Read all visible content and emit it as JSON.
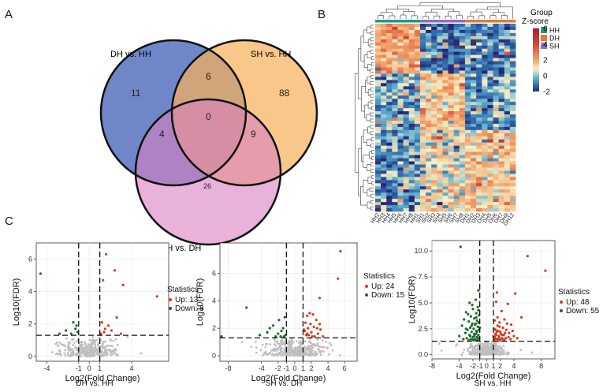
{
  "panels": {
    "a": "A",
    "b": "B",
    "c": "C"
  },
  "chart_data": [
    {
      "type": "venn",
      "sets": [
        "DH vs. HH",
        "SH vs. HH",
        "SH vs. DH"
      ],
      "colors": [
        "#6f87c9",
        "#f7b25b",
        "#d97fbf"
      ],
      "regions": {
        "dh_only": "11",
        "sh_hh_only": "88",
        "dh_and_sh_hh": "6",
        "all_three": "0",
        "dh_and_sh_dh": "4",
        "sh_hh_and_sh_dh": "9",
        "sh_dh_only": "26"
      }
    },
    {
      "type": "heatmap",
      "legend_title_group": "Group",
      "legend_title_z": "Z-score",
      "groups": [
        {
          "name": "HH",
          "color": "#1a9b8b"
        },
        {
          "name": "DH",
          "color": "#e07b3a"
        },
        {
          "name": "SH",
          "color": "#8a6fbf"
        }
      ],
      "z_ticks": [
        "6",
        "4",
        "2",
        "0",
        "-2"
      ],
      "zlim": [
        -2,
        6
      ],
      "columns": [
        "HH2",
        "HH3",
        "HH4",
        "HH5",
        "HH6",
        "HH7",
        "HH8",
        "HH1",
        "SH1",
        "SH2",
        "SH3",
        "SH4",
        "SH5",
        "SH6",
        "SH7",
        "SH8",
        "DH1",
        "DH2",
        "DH3",
        "DH4",
        "DH5",
        "DH6",
        "DH7",
        "DH8",
        "DH12"
      ],
      "column_groups": [
        "HH",
        "HH",
        "HH",
        "HH",
        "HH",
        "HH",
        "HH",
        "HH",
        "SH",
        "SH",
        "SH",
        "SH",
        "SH",
        "SH",
        "SH",
        "SH",
        "DH",
        "DH",
        "DH",
        "DH",
        "DH",
        "DH",
        "DH",
        "DH",
        "DH"
      ],
      "n_rows": 60
    },
    {
      "type": "scatter",
      "subtitle": "DH vs. HH",
      "xlabel": "Log2(Fold Change)",
      "ylabel": "Log10(FDR)",
      "xlim": [
        -5,
        7.5
      ],
      "ylim": [
        -0.3,
        7
      ],
      "x_ticks": [
        "-4",
        "-1",
        "0",
        "1",
        "4"
      ],
      "x_tick_values": [
        -4,
        -1,
        0,
        1,
        4
      ],
      "y_ticks": [
        "0",
        "2",
        "4",
        "6"
      ],
      "y_tick_values": [
        0,
        2,
        4,
        6
      ],
      "vlines": [
        -1,
        1
      ],
      "hline": 1.3,
      "legend": {
        "title": "Statistics",
        "up": "Up: 13",
        "down": "Down: 8"
      },
      "up_points": [
        [
          1.6,
          6.3
        ],
        [
          2.4,
          5.3
        ],
        [
          1.3,
          4.7
        ],
        [
          3.2,
          4.4
        ],
        [
          6.4,
          3.7
        ],
        [
          2.6,
          2.4
        ],
        [
          1.2,
          2.1
        ],
        [
          1.5,
          1.7
        ],
        [
          2.1,
          1.6
        ],
        [
          3.0,
          1.4
        ],
        [
          1.1,
          1.4
        ],
        [
          1.8,
          1.9
        ],
        [
          1.4,
          1.5
        ]
      ],
      "down_points": [
        [
          -4.6,
          5.1
        ],
        [
          -1.5,
          2.1
        ],
        [
          -1.2,
          1.9
        ],
        [
          -2.2,
          1.6
        ],
        [
          -1.1,
          1.5
        ],
        [
          -1.7,
          1.4
        ],
        [
          -2.8,
          1.4
        ],
        [
          -1.3,
          1.7
        ]
      ],
      "up_color": "#d73a1f",
      "down_color": "#1d6b2a",
      "ns_color": "#bfbfbf",
      "ns_range": {
        "x": [
          -3,
          3
        ],
        "ymax": 1.2,
        "n": 320
      }
    },
    {
      "type": "scatter",
      "subtitle": "SH vs. DH",
      "xlabel": "Log2(Fold Change)",
      "ylabel": "Log10(FDR)",
      "xlim": [
        -9,
        7.5
      ],
      "ylim": [
        -0.4,
        8.2
      ],
      "x_ticks": [
        "-8",
        "-4",
        "-2",
        "-1",
        "0",
        "1",
        "2",
        "4",
        "6"
      ],
      "x_tick_values": [
        -8,
        -4,
        -2,
        -1,
        0,
        1,
        2,
        4,
        6
      ],
      "y_ticks": [
        "0",
        "2",
        "4",
        "6"
      ],
      "y_tick_values": [
        0,
        2,
        4,
        6
      ],
      "vlines": [
        -1,
        1
      ],
      "hline": 1.3,
      "legend": {
        "title": "Statistics",
        "up": "Up: 24",
        "down": "Down: 15"
      },
      "up_points": [
        [
          5.5,
          7.6
        ],
        [
          5.2,
          5.6
        ],
        [
          3.0,
          4.2
        ],
        [
          1.8,
          3.1
        ],
        [
          2.2,
          3.0
        ],
        [
          1.5,
          2.9
        ],
        [
          2.6,
          2.6
        ],
        [
          1.3,
          2.4
        ],
        [
          1.9,
          2.3
        ],
        [
          2.3,
          2.1
        ],
        [
          1.6,
          2.0
        ],
        [
          3.1,
          1.9
        ],
        [
          1.2,
          1.8
        ],
        [
          2.0,
          1.7
        ],
        [
          2.8,
          1.6
        ],
        [
          1.4,
          1.5
        ],
        [
          1.7,
          1.5
        ],
        [
          2.4,
          1.4
        ],
        [
          3.4,
          1.4
        ],
        [
          1.1,
          1.9
        ],
        [
          2.7,
          2.0
        ],
        [
          1.5,
          1.6
        ],
        [
          2.1,
          1.4
        ],
        [
          3.0,
          2.3
        ]
      ],
      "down_points": [
        [
          -1.2,
          2.8
        ],
        [
          -5.8,
          3.5
        ],
        [
          -1.9,
          2.6
        ],
        [
          -2.6,
          2.2
        ],
        [
          -1.4,
          2.0
        ],
        [
          -3.3,
          1.7
        ],
        [
          -2.0,
          1.6
        ],
        [
          -1.1,
          1.5
        ],
        [
          -4.2,
          1.5
        ],
        [
          -1.6,
          1.8
        ],
        [
          -2.3,
          1.4
        ],
        [
          -3.0,
          2.0
        ],
        [
          -1.3,
          1.4
        ],
        [
          -8.8,
          1.4
        ],
        [
          -1.7,
          1.4
        ]
      ],
      "up_color": "#d73a1f",
      "down_color": "#1d6b2a",
      "ns_color": "#bfbfbf",
      "ns_range": {
        "x": [
          -4,
          4
        ],
        "ymax": 1.25,
        "n": 360
      }
    },
    {
      "type": "scatter",
      "subtitle": "SH vs. HH",
      "xlabel": "Log2(Fold Change)",
      "ylabel": "Log10(FDR)",
      "xlim": [
        -8,
        10
      ],
      "ylim": [
        -0.4,
        11
      ],
      "x_ticks": [
        "-8",
        "-4",
        "-2",
        "-1",
        "0",
        "1",
        "2",
        "4",
        "8"
      ],
      "x_tick_values": [
        -8,
        -4,
        -2,
        -1,
        0,
        1,
        2,
        4,
        8
      ],
      "y_ticks": [
        "0.0",
        "2.5",
        "5.0",
        "7.5",
        "10.0"
      ],
      "y_tick_values": [
        0,
        2.5,
        5,
        7.5,
        10
      ],
      "vlines": [
        -1,
        1
      ],
      "hline": 1.3,
      "legend": {
        "title": "Statistics",
        "up": "Up: 48",
        "down": "Down: 55"
      },
      "up_color": "#d73a1f",
      "down_color": "#1d6b2a",
      "ns_color": "#bfbfbf",
      "up_points": [
        [
          8.6,
          8.1
        ],
        [
          6.0,
          9.5
        ],
        [
          4.2,
          5.9
        ],
        [
          1.5,
          6.0
        ],
        [
          3.1,
          4.9
        ],
        [
          1.4,
          5.1
        ],
        [
          2.2,
          4.2
        ],
        [
          5.1,
          3.6
        ],
        [
          2.6,
          3.4
        ],
        [
          1.2,
          3.3
        ],
        [
          1.9,
          3.1
        ],
        [
          3.6,
          2.9
        ],
        [
          1.6,
          2.8
        ],
        [
          2.4,
          2.6
        ],
        [
          1.1,
          2.5
        ],
        [
          2.9,
          2.4
        ],
        [
          1.7,
          2.3
        ],
        [
          2.0,
          2.2
        ],
        [
          3.3,
          2.1
        ],
        [
          1.3,
          2.0
        ],
        [
          2.5,
          1.9
        ],
        [
          1.8,
          1.8
        ],
        [
          4.0,
          1.8
        ],
        [
          1.2,
          1.7
        ],
        [
          2.2,
          1.6
        ],
        [
          2.8,
          1.6
        ],
        [
          1.5,
          1.5
        ],
        [
          3.5,
          1.5
        ],
        [
          1.1,
          1.4
        ],
        [
          2.0,
          1.4
        ],
        [
          2.6,
          1.4
        ],
        [
          1.4,
          1.9
        ],
        [
          1.9,
          2.7
        ],
        [
          3.0,
          3.0
        ],
        [
          1.6,
          3.6
        ],
        [
          2.3,
          1.9
        ],
        [
          1.3,
          2.4
        ],
        [
          2.7,
          2.1
        ],
        [
          4.5,
          1.6
        ],
        [
          1.2,
          1.5
        ],
        [
          1.8,
          1.6
        ],
        [
          2.4,
          1.5
        ],
        [
          3.2,
          1.7
        ],
        [
          1.5,
          2.2
        ],
        [
          2.1,
          2.0
        ],
        [
          1.0,
          1.8
        ],
        [
          3.8,
          2.3
        ],
        [
          1.7,
          1.45
        ]
      ],
      "down_points": [
        [
          -3.8,
          10.4
        ],
        [
          -1.2,
          6.2
        ],
        [
          -1.6,
          5.3
        ],
        [
          -2.5,
          5.0
        ],
        [
          -1.3,
          4.6
        ],
        [
          -2.0,
          4.4
        ],
        [
          -3.0,
          4.1
        ],
        [
          -1.5,
          4.0
        ],
        [
          -1.1,
          3.8
        ],
        [
          -2.3,
          3.7
        ],
        [
          -1.8,
          3.5
        ],
        [
          -3.3,
          3.4
        ],
        [
          -1.4,
          3.3
        ],
        [
          -2.6,
          3.2
        ],
        [
          -1.2,
          3.1
        ],
        [
          -2.1,
          3.0
        ],
        [
          -1.7,
          2.9
        ],
        [
          -3.6,
          2.8
        ],
        [
          -1.3,
          2.7
        ],
        [
          -2.4,
          2.6
        ],
        [
          -1.9,
          2.5
        ],
        [
          -1.1,
          2.4
        ],
        [
          -2.8,
          2.4
        ],
        [
          -1.5,
          2.3
        ],
        [
          -2.2,
          2.2
        ],
        [
          -3.1,
          2.1
        ],
        [
          -1.6,
          2.0
        ],
        [
          -1.2,
          1.9
        ],
        [
          -2.5,
          1.9
        ],
        [
          -1.8,
          1.8
        ],
        [
          -4.0,
          1.8
        ],
        [
          -1.4,
          1.7
        ],
        [
          -2.0,
          1.7
        ],
        [
          -2.9,
          1.6
        ],
        [
          -1.1,
          1.6
        ],
        [
          -1.7,
          1.5
        ],
        [
          -2.3,
          1.5
        ],
        [
          -3.4,
          1.5
        ],
        [
          -1.3,
          1.4
        ],
        [
          -1.9,
          1.4
        ],
        [
          -2.6,
          1.4
        ],
        [
          -1.5,
          3.6
        ],
        [
          -2.1,
          4.8
        ],
        [
          -1.2,
          4.3
        ],
        [
          -2.7,
          3.9
        ],
        [
          -1.6,
          3.0
        ],
        [
          -1.0,
          2.6
        ],
        [
          -2.2,
          2.8
        ],
        [
          -3.0,
          2.5
        ],
        [
          -1.4,
          2.2
        ],
        [
          -1.8,
          2.0
        ],
        [
          -2.4,
          1.8
        ],
        [
          -1.2,
          1.6
        ],
        [
          -1.6,
          1.45
        ],
        [
          -2.0,
          1.45
        ]
      ],
      "ns_range": {
        "x": [
          -3,
          3
        ],
        "ymax": 1.28,
        "n": 380
      }
    }
  ]
}
